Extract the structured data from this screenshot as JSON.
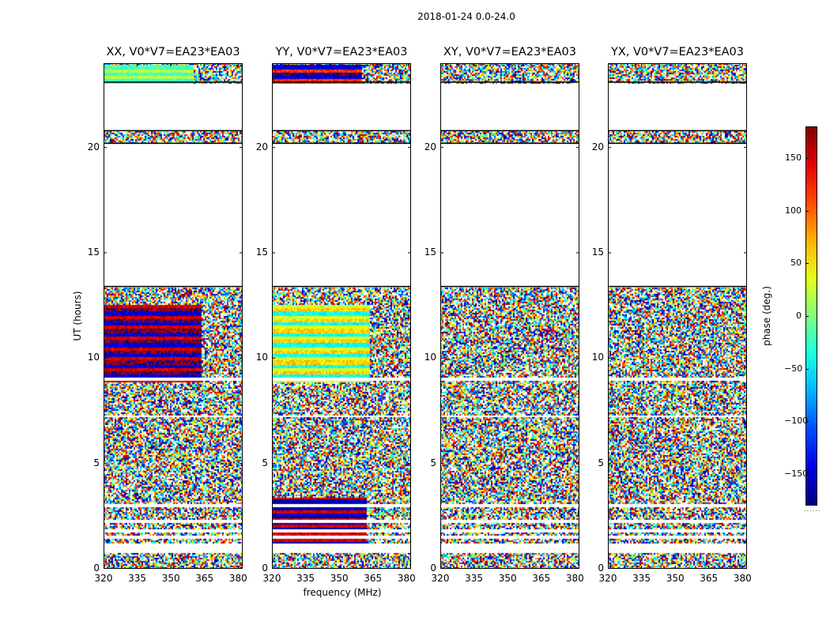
{
  "chart_data": {
    "type": "heatmap",
    "suptitle": "2018-01-24 0.0-24.0",
    "xlabel": "frequency (MHz)",
    "ylabel": "UT (hours)",
    "xlim": [
      320,
      382
    ],
    "ylim": [
      0,
      24
    ],
    "xticks": [
      "320",
      "335",
      "350",
      "365",
      "380"
    ],
    "xtick_values": [
      320,
      335,
      350,
      365,
      380
    ],
    "yticks": [
      "0",
      "5",
      "10",
      "15",
      "20"
    ],
    "ytick_values": [
      0,
      5,
      10,
      15,
      20
    ],
    "colorbar": {
      "label": "phase (deg.)",
      "range": [
        -180,
        180
      ],
      "ticks": [
        "150",
        "100",
        "50",
        "0",
        "−50",
        "−100",
        "−150"
      ],
      "tick_values": [
        150,
        100,
        50,
        0,
        -50,
        -100,
        -150
      ],
      "colormap": "jet",
      "footer": "......"
    },
    "data_gaps_hours": [
      [
        0.8,
        1.25
      ],
      [
        1.45,
        1.6
      ],
      [
        1.75,
        1.9
      ],
      [
        2.25,
        2.35
      ],
      [
        3.0,
        3.1
      ],
      [
        7.25,
        7.35
      ],
      [
        8.95,
        9.1
      ],
      [
        13.4,
        20.2
      ],
      [
        20.8,
        23.1
      ]
    ],
    "panels": [
      {
        "title": "XX, V0*V7=EA23*EA03",
        "pol": "XX",
        "coherent_blocks": [
          {
            "t": [
              8.9,
              12.6
            ],
            "f_max": 363,
            "dominant_phase_deg": [
              150,
              -150,
              175
            ]
          },
          {
            "t": [
              23.1,
              24
            ],
            "f_max": 360,
            "dominant_phase_deg": [
              -20,
              20
            ]
          }
        ]
      },
      {
        "title": "YY, V0*V7=EA23*EA03",
        "pol": "YY",
        "coherent_blocks": [
          {
            "t": [
              8.9,
              12.6
            ],
            "f_max": 363,
            "dominant_phase_deg": [
              30,
              -40,
              60
            ]
          },
          {
            "t": [
              23.1,
              24
            ],
            "f_max": 360,
            "dominant_phase_deg": [
              120,
              -150,
              -170
            ]
          },
          {
            "t": [
              0.8,
              3.4
            ],
            "f_max": 362,
            "dominant_phase_deg": [
              -160,
              150
            ]
          }
        ]
      },
      {
        "title": "XY, V0*V7=EA23*EA03",
        "pol": "XY",
        "coherent_blocks": []
      },
      {
        "title": "YX, V0*V7=EA23*EA03",
        "pol": "YX",
        "coherent_blocks": []
      }
    ]
  }
}
